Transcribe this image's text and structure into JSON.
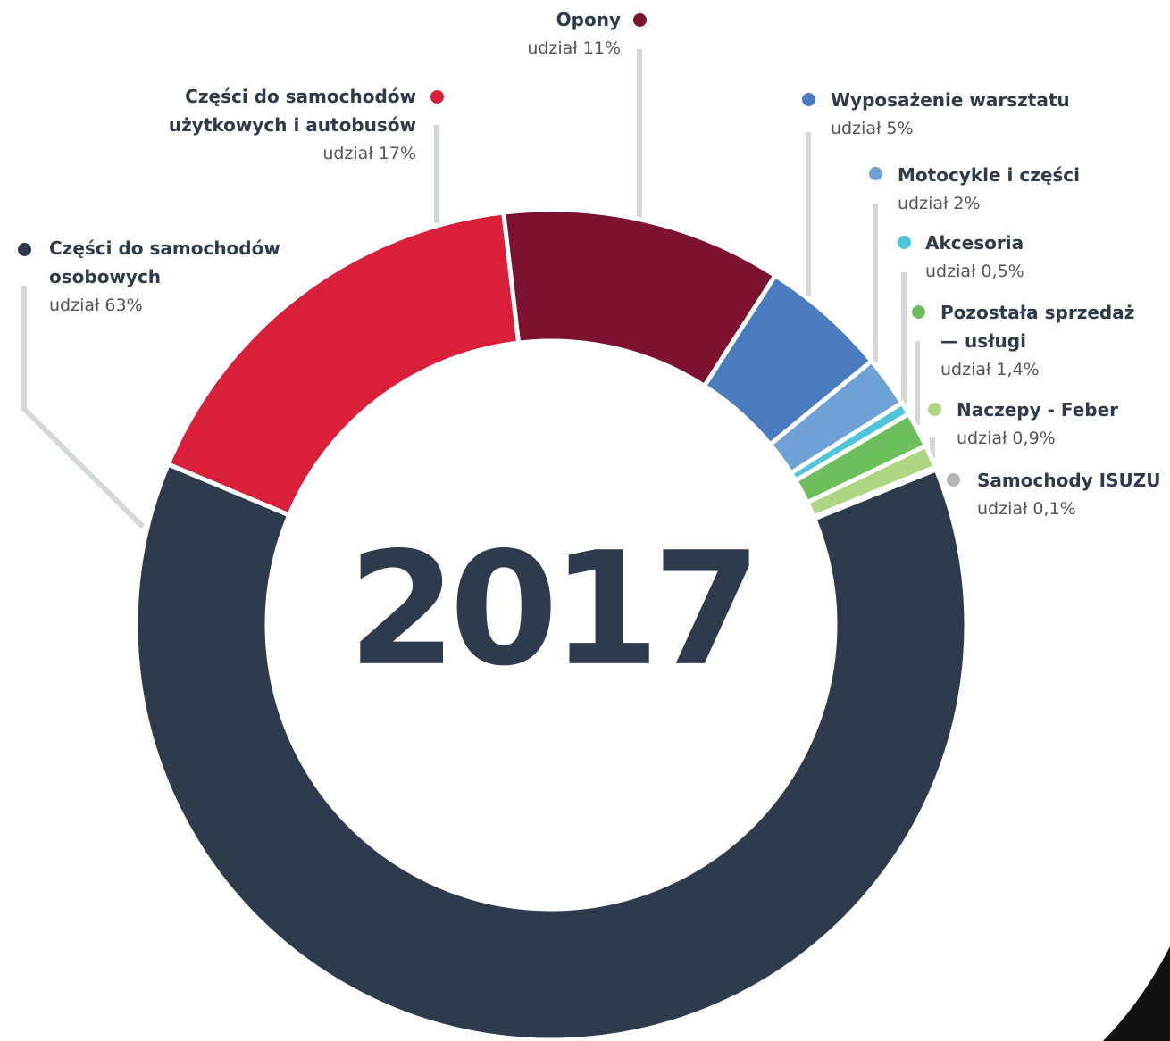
{
  "chart_data": {
    "type": "donut",
    "title": "2017",
    "categories": [
      "Części do samochodów osobowych",
      "Części do samochodów użytkowych i autobusów",
      "Opony",
      "Wyposażenie warsztatu",
      "Motocykle i części",
      "Akcesoria",
      "Pozostała sprzedaż — usługi",
      "Naczepy - Feber",
      "Samochody ISUZU"
    ],
    "values": [
      63,
      17,
      11,
      5,
      2,
      0.5,
      1.4,
      0.9,
      0.1
    ],
    "value_labels": [
      "udział 63%",
      "udział 17%",
      "udział 11%",
      "udział 5%",
      "udział 2%",
      "udział 0,5%",
      "udział 1,4%",
      "udział 0,9%",
      "udział 0,1%"
    ],
    "colors": [
      "#2d3b4c",
      "#d91f3a",
      "#7d1230",
      "#4a7bbf",
      "#6fa0d6",
      "#4ec5dc",
      "#6cbf5c",
      "#aed581",
      "#b5b5b5"
    ]
  }
}
